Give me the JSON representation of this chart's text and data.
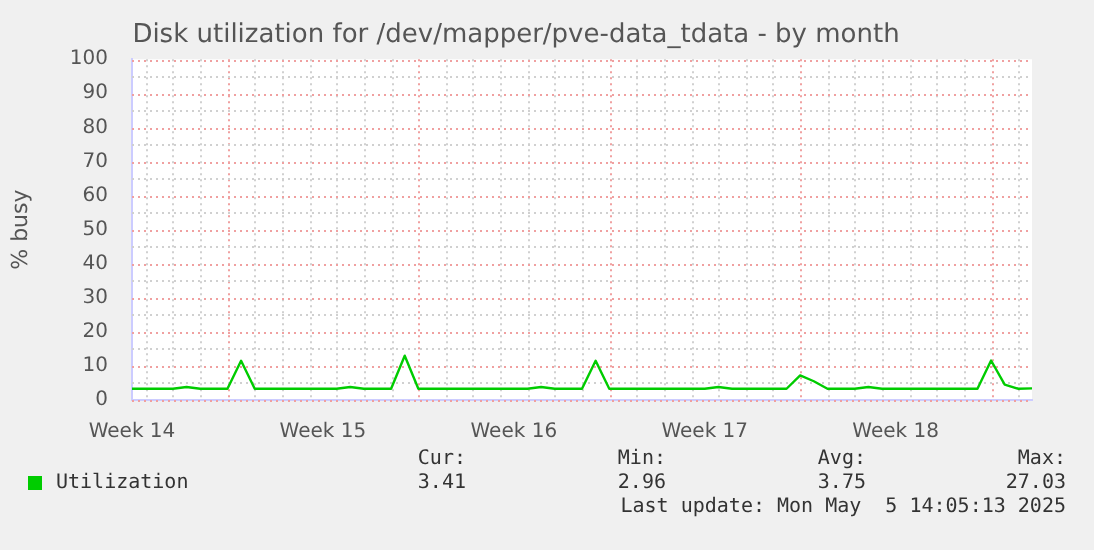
{
  "chart_data": {
    "type": "line",
    "title": "Disk utilization for /dev/mapper/pve-data_tdata - by month",
    "ylabel": "% busy",
    "categories": [
      "Week 14",
      null,
      null,
      null,
      null,
      null,
      null,
      null,
      null,
      null,
      null,
      null,
      null,
      null,
      "Week 15",
      null,
      null,
      null,
      null,
      null,
      null,
      null,
      null,
      null,
      null,
      null,
      null,
      null,
      "Week 16",
      null,
      null,
      null,
      null,
      null,
      null,
      null,
      null,
      null,
      null,
      null,
      null,
      null,
      "Week 17",
      null,
      null,
      null,
      null,
      null,
      null,
      null,
      null,
      null,
      null,
      null,
      null,
      null,
      "Week 18",
      null,
      null,
      null,
      null,
      null,
      null,
      null,
      null,
      null,
      null
    ],
    "ylim": [
      0,
      100
    ],
    "yticks": [
      0,
      10,
      20,
      30,
      40,
      50,
      60,
      70,
      80,
      90,
      100
    ],
    "grid": true,
    "legend": "bottom",
    "marker": "none",
    "line_style": "solid",
    "series": [
      {
        "name": "Utilization",
        "color": "#00cc00",
        "values": [
          3.3,
          3.3,
          3.3,
          3.3,
          3.8,
          3.3,
          3.3,
          3.3,
          11.5,
          3.3,
          3.3,
          3.3,
          3.3,
          3.3,
          3.3,
          3.3,
          3.8,
          3.3,
          3.3,
          3.3,
          13,
          3.3,
          3.3,
          3.3,
          3.3,
          3.3,
          3.3,
          3.3,
          3.3,
          3.3,
          3.8,
          3.3,
          3.3,
          3.3,
          11.5,
          3.3,
          3.3,
          3.3,
          3.3,
          3.3,
          3.3,
          3.3,
          3.3,
          3.8,
          3.3,
          3.3,
          3.3,
          3.3,
          3.3,
          7.2,
          5.5,
          3.3,
          3.3,
          3.3,
          3.8,
          3.3,
          3.3,
          3.3,
          3.3,
          3.3,
          3.3,
          3.3,
          3.3,
          11.6,
          4.5,
          3.3,
          3.4
        ]
      }
    ],
    "annotations": [
      "Cur:",
      "Min:",
      "Avg:",
      "Max:",
      "3.41",
      "2.96",
      "3.75",
      "27.03",
      "Last update: Mon May  5 14:05:13 2025"
    ]
  }
}
